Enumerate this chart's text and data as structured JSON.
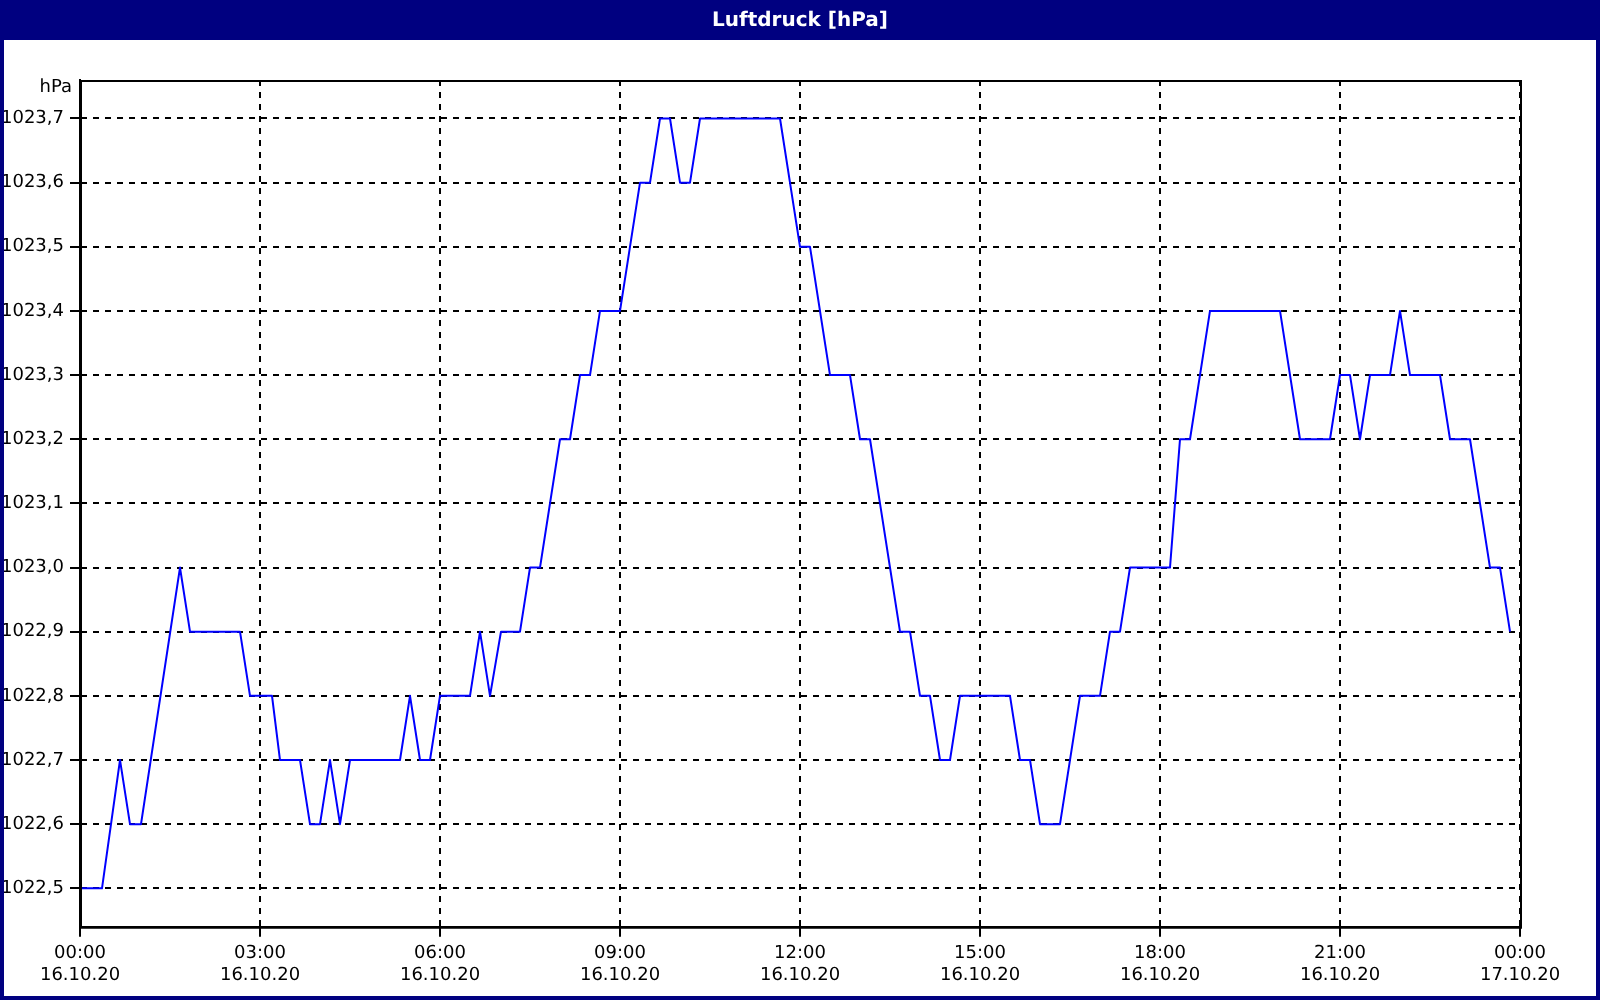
{
  "chart_data": {
    "type": "line",
    "title": "Luftdruck [hPa]",
    "ylabel": "hPa",
    "xlim": [
      "--10-16T00:00",
      "--10-17T00:00"
    ],
    "ylim": [
      1022.44,
      1023.76
    ],
    "xticks": [
      {
        "value": "--10-16T00:00",
        "label": "00:00\n16.10.20"
      },
      {
        "value": "--10-16T03:00",
        "label": "03:00\n16.10.20"
      },
      {
        "value": "--10-16T06:00",
        "label": "06:00\n16.10.20"
      },
      {
        "value": "--10-16T09:00",
        "label": "09:00\n16.10.20"
      },
      {
        "value": "--10-16T12:00",
        "label": "12:00\n16.10.20"
      },
      {
        "value": "--10-16T15:00",
        "label": "15:00\n16.10.20"
      },
      {
        "value": "--10-16T18:00",
        "label": "18:00\n16.10.20"
      },
      {
        "value": "--10-16T21:00",
        "label": "21:00\n16.10.20"
      },
      {
        "value": "--10-17T00:00",
        "label": "00:00\n17.10.20"
      }
    ],
    "yticks": [
      {
        "value": 1022.5,
        "label": "1022,5"
      },
      {
        "value": 1022.6,
        "label": "1022,6"
      },
      {
        "value": 1022.7,
        "label": "1022,7"
      },
      {
        "value": 1022.8,
        "label": "1022,8"
      },
      {
        "value": 1022.9,
        "label": "1022,9"
      },
      {
        "value": 1023.0,
        "label": "1023,0"
      },
      {
        "value": 1023.1,
        "label": "1023,1"
      },
      {
        "value": 1023.2,
        "label": "1023,2"
      },
      {
        "value": 1023.3,
        "label": "1023,3"
      },
      {
        "value": 1023.4,
        "label": "1023,4"
      },
      {
        "value": 1023.5,
        "label": "1023,5"
      },
      {
        "value": 1023.6,
        "label": "1023,6"
      },
      {
        "value": 1023.7,
        "label": "1023,7"
      }
    ],
    "grid": true,
    "marker": "none",
    "line_style": "solid",
    "series": [
      {
        "color": "#0000ff",
        "x": [
          "--10-16T00:00",
          "--10-16T00:22",
          "--10-16T00:40",
          "--10-16T00:50",
          "--10-16T01:01",
          "--10-16T01:40",
          "--10-16T01:50",
          "--10-16T02:40",
          "--10-16T02:50",
          "--10-16T03:12",
          "--10-16T03:20",
          "--10-16T03:40",
          "--10-16T03:50",
          "--10-16T04:00",
          "--10-16T04:10",
          "--10-16T04:20",
          "--10-16T04:30",
          "--10-16T05:20",
          "--10-16T05:30",
          "--10-16T05:40",
          "--10-16T05:50",
          "--10-16T06:00",
          "--10-16T06:30",
          "--10-16T06:40",
          "--10-16T06:50",
          "--10-16T07:01",
          "--10-16T07:20",
          "--10-16T07:30",
          "--10-16T07:40",
          "--10-16T08:00",
          "--10-16T08:10",
          "--10-16T08:20",
          "--10-16T08:30",
          "--10-16T08:40",
          "--10-16T09:00",
          "--10-16T09:20",
          "--10-16T09:30",
          "--10-16T09:40",
          "--10-16T09:50",
          "--10-16T10:00",
          "--10-16T10:10",
          "--10-16T10:20",
          "--10-16T11:40",
          "--10-16T12:00",
          "--10-16T12:10",
          "--10-16T12:30",
          "--10-16T12:50",
          "--10-16T13:00",
          "--10-16T13:10",
          "--10-16T13:40",
          "--10-16T13:50",
          "--10-16T14:00",
          "--10-16T14:10",
          "--10-16T14:20",
          "--10-16T14:30",
          "--10-16T14:40",
          "--10-16T15:30",
          "--10-16T15:40",
          "--10-16T15:50",
          "--10-16T16:00",
          "--10-16T16:20",
          "--10-16T16:40",
          "--10-16T17:00",
          "--10-16T17:10",
          "--10-16T17:20",
          "--10-16T17:30",
          "--10-16T18:10",
          "--10-16T18:20",
          "--10-16T18:30",
          "--10-16T18:50",
          "--10-16T20:00",
          "--10-16T20:20",
          "--10-16T20:50",
          "--10-16T21:00",
          "--10-16T21:10",
          "--10-16T21:20",
          "--10-16T21:30",
          "--10-16T21:50",
          "--10-16T22:00",
          "--10-16T22:10",
          "--10-16T22:40",
          "--10-16T22:50",
          "--10-16T23:10",
          "--10-16T23:30",
          "--10-16T23:40",
          "--10-16T23:50"
        ],
        "values": [
          1022.5,
          1022.5,
          1022.7,
          1022.6,
          1022.6,
          1023.0,
          1022.9,
          1022.9,
          1022.8,
          1022.8,
          1022.7,
          1022.7,
          1022.6,
          1022.6,
          1022.7,
          1022.6,
          1022.7,
          1022.7,
          1022.8,
          1022.7,
          1022.7,
          1022.8,
          1022.8,
          1022.9,
          1022.8,
          1022.9,
          1022.9,
          1023.0,
          1023.0,
          1023.2,
          1023.2,
          1023.3,
          1023.3,
          1023.4,
          1023.4,
          1023.6,
          1023.6,
          1023.7,
          1023.7,
          1023.6,
          1023.6,
          1023.7,
          1023.7,
          1023.5,
          1023.5,
          1023.3,
          1023.3,
          1023.2,
          1023.2,
          1022.9,
          1022.9,
          1022.8,
          1022.8,
          1022.7,
          1022.7,
          1022.8,
          1022.8,
          1022.7,
          1022.7,
          1022.6,
          1022.6,
          1022.8,
          1022.8,
          1022.9,
          1022.9,
          1023.0,
          1023.0,
          1023.2,
          1023.2,
          1023.4,
          1023.4,
          1023.2,
          1023.2,
          1023.3,
          1023.3,
          1023.2,
          1023.3,
          1023.3,
          1023.4,
          1023.3,
          1023.3,
          1023.2,
          1023.2,
          1023.0,
          1023.0,
          1022.9
        ]
      }
    ]
  }
}
